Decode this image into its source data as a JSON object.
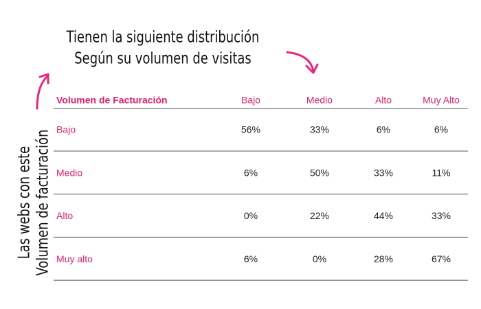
{
  "heading": {
    "lines": [
      "Tienen la siguiente distribución",
      "Según su volumen de visitas"
    ]
  },
  "side_label": {
    "lines": [
      "Las webs con este",
      "Volumen de facturación"
    ]
  },
  "table": {
    "header": [
      "Volumen de Facturación",
      "Bajo",
      "Medio",
      "Alto",
      "Muy Alto"
    ],
    "rows": [
      [
        "Bajo",
        "56%",
        "33%",
        "6%",
        "6%"
      ],
      [
        "Medio",
        "6%",
        "50%",
        "33%",
        "11%"
      ],
      [
        "Alto",
        "0%",
        "22%",
        "44%",
        "33%"
      ],
      [
        "Muy alto",
        "6%",
        "0%",
        "28%",
        "67%"
      ]
    ]
  }
}
